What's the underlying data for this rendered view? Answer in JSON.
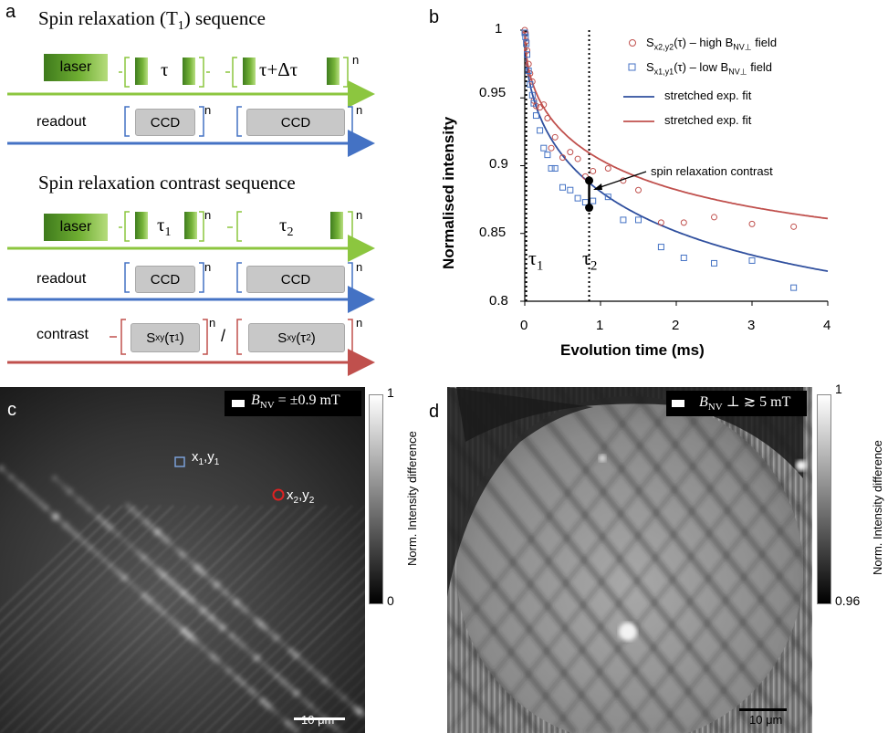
{
  "panel_a": {
    "label": "a",
    "title1": "Spin relaxation (T",
    "title1_sub": "1",
    "title1_end": ") sequence",
    "laser": "laser",
    "tau": "τ",
    "tau_dt": "τ+Δτ",
    "n": "n",
    "readout": "readout",
    "ccd": "CCD",
    "title2": "Spin relaxation contrast sequence",
    "tau1": "τ",
    "tau1_sub": "1",
    "tau2": "τ",
    "tau2_sub": "2",
    "contrast": "contrast",
    "sxy": "S",
    "sxy_sub": "xy",
    "sxy1_arg": "(τ",
    "sxy1_argsub": "1",
    "sxy_close": ")",
    "sxy2_argsub": "2",
    "slash": "/",
    "colors": {
      "green": "#8cc63f",
      "blue": "#4472c4",
      "red": "#c0504d"
    }
  },
  "panel_b": {
    "label": "b",
    "ylabel": "Normalised intensity",
    "xlabel": "Evolution time (ms)",
    "yticks": [
      "1",
      "0.95",
      "0.9",
      "0.85",
      "0.8"
    ],
    "xticks": [
      "0",
      "1",
      "2",
      "3",
      "4"
    ],
    "legend": {
      "s2": "S",
      "s2_sub": "x2,y2",
      "s2_rest": "(τ) – high B",
      "s2_sub2": "NV⊥",
      "s2_end": " field",
      "s1": "S",
      "s1_sub": "x1,y1",
      "s1_rest": "(τ) – low B",
      "s1_sub2": "NV⊥",
      "s1_end": " field",
      "fit_blue": "stretched exp. fit",
      "fit_red": "stretched exp. fit"
    },
    "annotation": "spin relaxation contrast",
    "tau1": "τ",
    "tau1_sub": "1",
    "tau2": "τ",
    "tau2_sub": "2"
  },
  "panel_c": {
    "label": "c",
    "field_B": "B",
    "field_sub": "NV",
    "field_val": " = ±0.9 mT",
    "pt1": "x",
    "pt1_sub": "1",
    "pt1_y": ",y",
    "pt1_ysub": "1",
    "pt2": "x",
    "pt2_sub": "2",
    "pt2_y": ",y",
    "pt2_ysub": "2",
    "scalebar": "10 μm",
    "cbar_top": "1",
    "cbar_bottom": "0",
    "cbar_label": "Norm. Intensity difference"
  },
  "panel_d": {
    "label": "d",
    "field_B": "B",
    "field_sub": "NV",
    "field_val": " ⊥ ≳ 5 mT",
    "scalebar": "10 μm",
    "cbar_top": "1",
    "cbar_bottom": "0.96",
    "cbar_label": "Norm. Intensity difference"
  },
  "chart_data": {
    "type": "scatter",
    "xlabel": "Evolution time (ms)",
    "ylabel": "Normalised intensity",
    "xlim": [
      0,
      4
    ],
    "ylim": [
      0.8,
      1.0
    ],
    "series": [
      {
        "name": "Sx2,y2(τ) – high BNV⊥ field",
        "marker": "circle",
        "color": "#c0504d",
        "x": [
          0.0,
          0.01,
          0.02,
          0.03,
          0.05,
          0.07,
          0.1,
          0.12,
          0.15,
          0.2,
          0.25,
          0.3,
          0.35,
          0.4,
          0.5,
          0.6,
          0.7,
          0.8,
          0.9,
          1.1,
          1.3,
          1.5,
          1.8,
          2.1,
          2.5,
          3.0,
          3.55
        ],
        "y": [
          1.0,
          0.998,
          0.992,
          0.985,
          0.975,
          0.968,
          0.962,
          0.948,
          0.944,
          0.943,
          0.945,
          0.935,
          0.913,
          0.921,
          0.906,
          0.91,
          0.905,
          0.892,
          0.896,
          0.898,
          0.889,
          0.882,
          0.858,
          0.858,
          0.862,
          0.857,
          0.855
        ]
      },
      {
        "name": "Sx1,y1(τ) – low BNV⊥ field",
        "marker": "square",
        "color": "#4472c4",
        "x": [
          0.0,
          0.01,
          0.02,
          0.03,
          0.05,
          0.07,
          0.1,
          0.12,
          0.15,
          0.2,
          0.25,
          0.3,
          0.35,
          0.4,
          0.5,
          0.6,
          0.7,
          0.8,
          0.9,
          1.1,
          1.3,
          1.5,
          1.8,
          2.1,
          2.5,
          3.0,
          3.55
        ],
        "y": [
          0.998,
          0.995,
          0.99,
          0.982,
          0.97,
          0.96,
          0.952,
          0.946,
          0.937,
          0.926,
          0.913,
          0.908,
          0.898,
          0.898,
          0.884,
          0.882,
          0.876,
          0.873,
          0.874,
          0.877,
          0.86,
          0.86,
          0.84,
          0.832,
          0.828,
          0.83,
          0.81
        ]
      },
      {
        "name": "stretched exp. fit",
        "type": "line",
        "color": "#2f4f9e",
        "fit_for": "Sx1,y1"
      },
      {
        "name": "stretched exp. fit",
        "type": "line",
        "color": "#c0504d",
        "fit_for": "Sx2,y2"
      }
    ],
    "markers": {
      "tau1_ms": 0.02,
      "tau2_ms": 0.85
    },
    "legend": "top-right",
    "grid": false
  }
}
